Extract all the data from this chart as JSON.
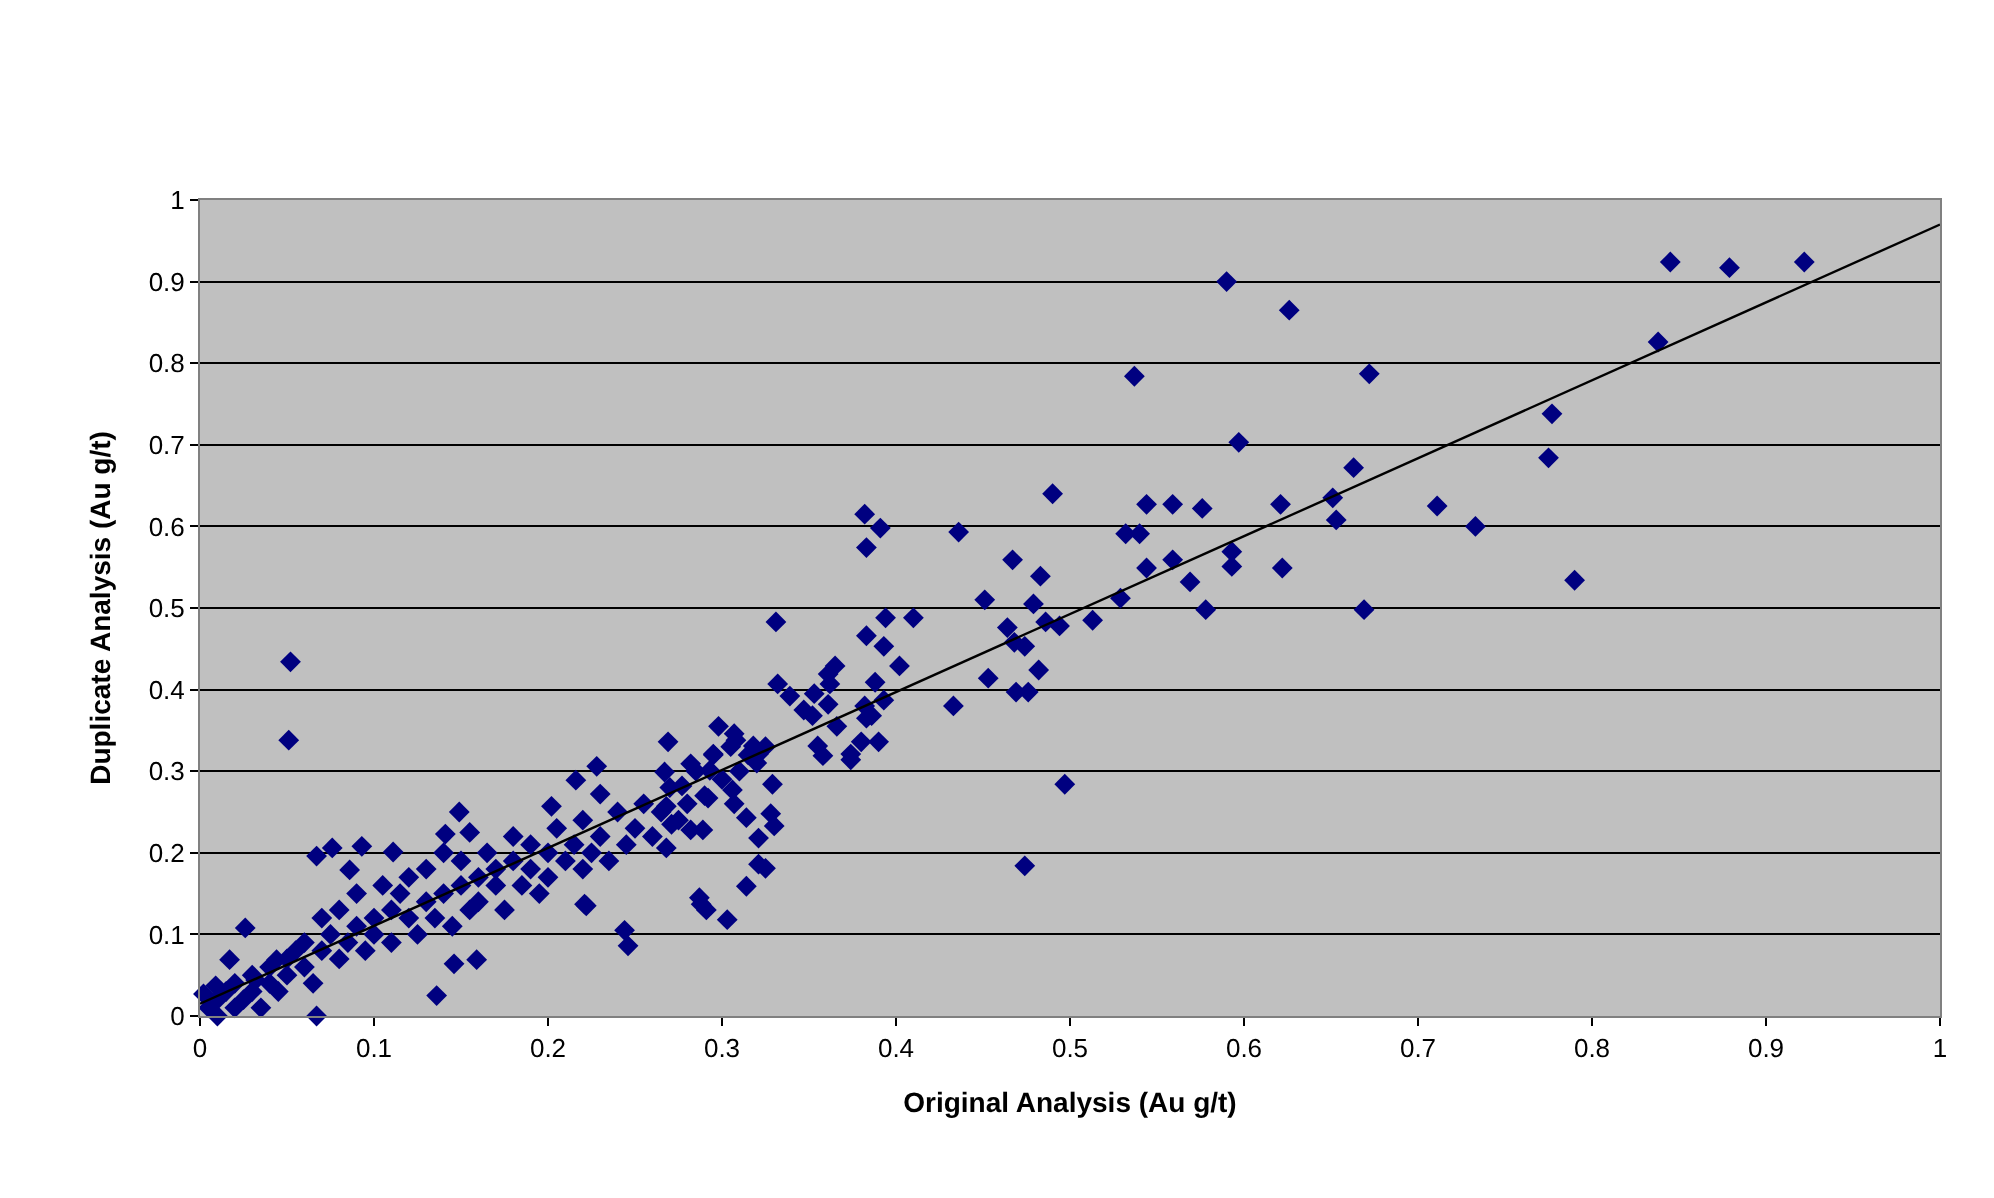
{
  "chart_data": {
    "type": "scatter",
    "xlabel": "Original Analysis (Au g/t)",
    "ylabel": "Duplicate Analysis (Au g/t)",
    "xlim": [
      0,
      1
    ],
    "ylim": [
      0,
      1
    ],
    "xticks": [
      0,
      0.1,
      0.2,
      0.3,
      0.4,
      0.5,
      0.6,
      0.7,
      0.8,
      0.9,
      1
    ],
    "yticks": [
      0,
      0.1,
      0.2,
      0.3,
      0.4,
      0.5,
      0.6,
      0.7,
      0.8,
      0.9,
      1
    ],
    "grid": "y",
    "series": [
      {
        "color": "#000080",
        "marker": "diamond",
        "x": [
          0.59,
          0.626,
          0.672,
          0.537,
          0.845,
          0.879,
          0.922,
          0.838,
          0.777,
          0.775,
          0.663,
          0.597,
          0.711,
          0.733,
          0.79,
          0.669,
          0.651,
          0.653,
          0.621,
          0.622,
          0.559,
          0.576,
          0.544,
          0.49,
          0.382,
          0.391,
          0.383,
          0.436,
          0.532,
          0.54,
          0.467,
          0.483,
          0.451,
          0.479,
          0.544,
          0.559,
          0.569,
          0.578,
          0.593,
          0.593,
          0.529,
          0.513,
          0.486,
          0.494,
          0.464,
          0.468,
          0.474,
          0.453,
          0.469,
          0.476,
          0.482,
          0.433,
          0.497,
          0.474,
          0.331,
          0.394,
          0.41,
          0.383,
          0.393,
          0.402,
          0.388,
          0.365,
          0.361,
          0.362,
          0.332,
          0.339,
          0.353,
          0.347,
          0.352,
          0.361,
          0.382,
          0.383,
          0.386,
          0.393,
          0.366,
          0.355,
          0.358,
          0.374,
          0.374,
          0.38,
          0.39,
          0.298,
          0.308,
          0.318,
          0.321,
          0.307,
          0.269,
          0.282,
          0.295,
          0.293,
          0.267,
          0.329,
          0.306,
          0.307,
          0.314,
          0.328,
          0.33,
          0.321,
          0.321,
          0.325,
          0.314,
          0.287,
          0.277,
          0.268,
          0.271,
          0.282,
          0.289,
          0.268,
          0.292,
          0.052,
          0.051,
          0.067,
          0.076,
          0.093,
          0.111,
          0.086,
          0.026,
          0.017,
          0.149,
          0.155,
          0.141,
          0.202,
          0.216,
          0.228,
          0.23,
          0.221,
          0.222,
          0.244,
          0.246,
          0.288,
          0.291,
          0.303,
          0.136,
          0.067,
          0.146,
          0.159,
          0.002,
          0.009,
          0.032,
          0.044,
          0.005,
          0.01,
          0.01,
          0.015,
          0.02,
          0.02,
          0.025,
          0.03,
          0.03,
          0.035,
          0.04,
          0.04,
          0.045,
          0.05,
          0.05,
          0.055,
          0.06,
          0.06,
          0.065,
          0.07,
          0.07,
          0.075,
          0.08,
          0.08,
          0.085,
          0.09,
          0.09,
          0.095,
          0.1,
          0.1,
          0.105,
          0.11,
          0.11,
          0.115,
          0.12,
          0.12,
          0.125,
          0.13,
          0.13,
          0.135,
          0.14,
          0.14,
          0.145,
          0.15,
          0.15,
          0.155,
          0.16,
          0.16,
          0.165,
          0.17,
          0.17,
          0.175,
          0.18,
          0.18,
          0.185,
          0.19,
          0.19,
          0.195,
          0.2,
          0.2,
          0.205,
          0.21,
          0.215,
          0.22,
          0.22,
          0.225,
          0.23,
          0.235,
          0.24,
          0.245,
          0.25,
          0.255,
          0.26,
          0.265,
          0.27,
          0.275,
          0.28,
          0.285,
          0.29,
          0.295,
          0.3,
          0.305,
          0.31,
          0.315,
          0.32,
          0.325
        ],
        "values": [
          0.9,
          0.865,
          0.787,
          0.784,
          0.924,
          0.917,
          0.924,
          0.826,
          0.738,
          0.684,
          0.672,
          0.703,
          0.625,
          0.6,
          0.534,
          0.498,
          0.635,
          0.608,
          0.627,
          0.549,
          0.627,
          0.622,
          0.627,
          0.64,
          0.615,
          0.598,
          0.574,
          0.593,
          0.591,
          0.591,
          0.559,
          0.539,
          0.51,
          0.505,
          0.549,
          0.559,
          0.532,
          0.498,
          0.569,
          0.551,
          0.512,
          0.485,
          0.483,
          0.478,
          0.476,
          0.458,
          0.453,
          0.414,
          0.397,
          0.397,
          0.424,
          0.38,
          0.284,
          0.184,
          0.483,
          0.488,
          0.488,
          0.466,
          0.453,
          0.429,
          0.409,
          0.429,
          0.419,
          0.407,
          0.407,
          0.392,
          0.395,
          0.375,
          0.368,
          0.382,
          0.38,
          0.365,
          0.368,
          0.387,
          0.355,
          0.331,
          0.319,
          0.321,
          0.314,
          0.336,
          0.336,
          0.355,
          0.338,
          0.331,
          0.321,
          0.346,
          0.336,
          0.309,
          0.321,
          0.301,
          0.299,
          0.284,
          0.277,
          0.26,
          0.243,
          0.248,
          0.233,
          0.218,
          0.186,
          0.181,
          0.159,
          0.145,
          0.282,
          0.257,
          0.235,
          0.228,
          0.228,
          0.206,
          0.267,
          0.434,
          0.338,
          0.196,
          0.206,
          0.208,
          0.201,
          0.179,
          0.108,
          0.069,
          0.25,
          0.225,
          0.223,
          0.257,
          0.289,
          0.306,
          0.272,
          0.137,
          0.135,
          0.105,
          0.086,
          0.137,
          0.13,
          0.118,
          0.025,
          0.0,
          0.064,
          0.069,
          0.027,
          0.037,
          0.044,
          0.069,
          0.01,
          0.02,
          0.0,
          0.03,
          0.01,
          0.04,
          0.02,
          0.05,
          0.03,
          0.01,
          0.06,
          0.04,
          0.03,
          0.07,
          0.05,
          0.08,
          0.06,
          0.09,
          0.04,
          0.12,
          0.08,
          0.1,
          0.07,
          0.13,
          0.09,
          0.11,
          0.15,
          0.08,
          0.12,
          0.1,
          0.16,
          0.13,
          0.09,
          0.15,
          0.12,
          0.17,
          0.1,
          0.14,
          0.18,
          0.12,
          0.15,
          0.2,
          0.11,
          0.16,
          0.19,
          0.13,
          0.17,
          0.14,
          0.2,
          0.16,
          0.18,
          0.13,
          0.19,
          0.22,
          0.16,
          0.18,
          0.21,
          0.15,
          0.2,
          0.17,
          0.23,
          0.19,
          0.21,
          0.18,
          0.24,
          0.2,
          0.22,
          0.19,
          0.25,
          0.21,
          0.23,
          0.26,
          0.22,
          0.25,
          0.28,
          0.24,
          0.26,
          0.3,
          0.27,
          0.32,
          0.29,
          0.33,
          0.3,
          0.32,
          0.31,
          0.33
        ]
      },
      {
        "type": "line",
        "color": "#000000",
        "marker": "none",
        "x": [
          0,
          1
        ],
        "values": [
          0.015,
          0.97
        ]
      }
    ]
  }
}
